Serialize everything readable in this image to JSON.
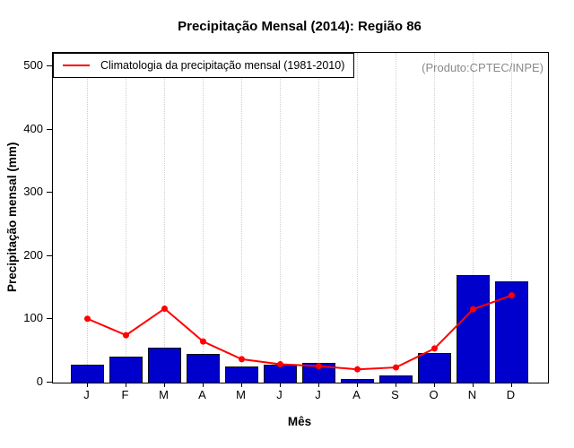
{
  "title": "Precipitação Mensal (2014): Região 86",
  "produto_label": "(Produto:CPTEC/INPE)",
  "legend": {
    "label": "Climatologia da precipitação mensal (1981-2010)",
    "line_color": "#ff0000"
  },
  "colors": {
    "bar_fill": "#0000cd",
    "bar_border": "#101010",
    "climatology_line": "#ff0000",
    "grid": "#cfcfcf",
    "produto_text": "#8a8a8a"
  },
  "chart_data": {
    "type": "bar",
    "categories": [
      "J",
      "F",
      "M",
      "A",
      "M",
      "J",
      "J",
      "A",
      "S",
      "O",
      "N",
      "D"
    ],
    "series": [
      {
        "name": "Precipitação mensal 2014",
        "type": "bar",
        "color": "#0000cd",
        "values": [
          29,
          41,
          55,
          46,
          25,
          28,
          31,
          6,
          11,
          47,
          170,
          160
        ]
      },
      {
        "name": "Climatologia da precipitação mensal (1981-2010)",
        "type": "line",
        "color": "#ff0000",
        "values": [
          101,
          75,
          117,
          65,
          37,
          29,
          26,
          21,
          24,
          54,
          116,
          138
        ]
      }
    ],
    "title": "Precipitação Mensal (2014): Região 86",
    "xlabel": "Mês",
    "ylabel": "Precipitação mensal (mm)",
    "ylim": [
      0,
      522
    ],
    "yticks": [
      0,
      100,
      200,
      300,
      400,
      500
    ],
    "grid": "vertical-dotted",
    "legend_position": "top-left"
  }
}
